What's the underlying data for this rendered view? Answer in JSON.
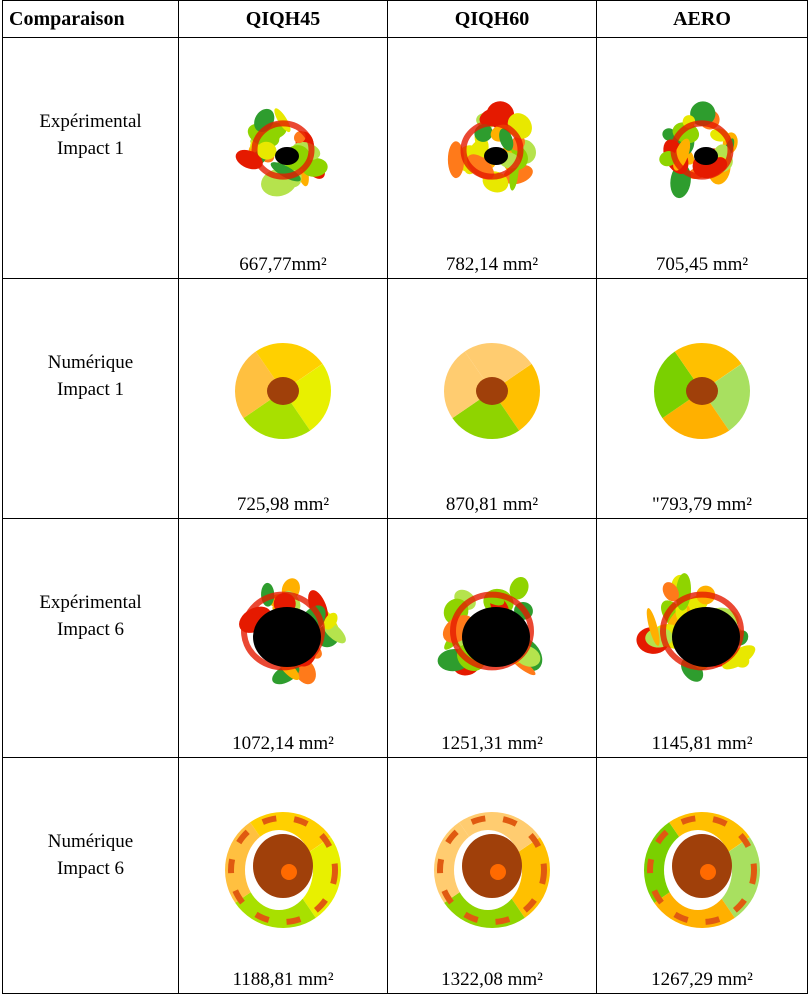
{
  "table": {
    "header": [
      "Comparaison",
      "QIQH45",
      "QIQH60",
      "AERO"
    ],
    "rows": [
      {
        "label": [
          "Expérimental",
          "Impact 1"
        ],
        "areas": [
          "667,77mm²",
          "782,14 mm²",
          "705,45 mm²"
        ]
      },
      {
        "label": [
          "Numérique",
          "Impact 1"
        ],
        "areas": [
          "725,98 mm²",
          "870,81 mm²",
          "\"793,79 mm²"
        ]
      },
      {
        "label": [
          "Expérimental",
          "Impact 6"
        ],
        "areas": [
          "1072,14 mm²",
          "1251,31 mm²",
          "1145,81 mm²"
        ]
      },
      {
        "label": [
          "Numérique",
          "Impact 6"
        ],
        "areas": [
          "1188,81 mm²",
          "1322,08 mm²",
          "1267,29 mm²"
        ]
      }
    ]
  }
}
